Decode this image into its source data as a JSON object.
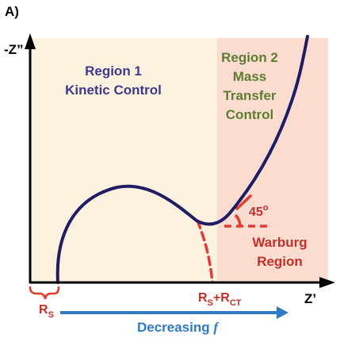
{
  "panel_label": "A)",
  "axes": {
    "y_label": "-Z”",
    "x_label": "Z’"
  },
  "regions": {
    "region1": {
      "line1": "Region 1",
      "line2": "Kinetic Control"
    },
    "region2": {
      "line1": "Region 2",
      "line2": "Mass",
      "line3": "Transfer",
      "line4": "Control"
    },
    "warburg": {
      "line1": "Warburg",
      "line2": "Region"
    }
  },
  "annotations": {
    "angle": {
      "value": "45",
      "unit": "o"
    },
    "rs": {
      "main": "R",
      "sub": "S"
    },
    "rs_rct": {
      "r1": "R",
      "s1": "S",
      "plus": "+R",
      "ct": "CT"
    },
    "frequency": {
      "text": "Decreasing ",
      "var": "f"
    }
  },
  "colors": {
    "region1_bg": "#fdf2df",
    "region2_bg": "#fbdcd1",
    "curve": "#1f1d63",
    "red": "#e43a30",
    "region1_text": "#3d3a8c",
    "region2_text": "#5e7d33",
    "warburg_text": "#c42f27",
    "arrow": "#2e7bc4"
  }
}
